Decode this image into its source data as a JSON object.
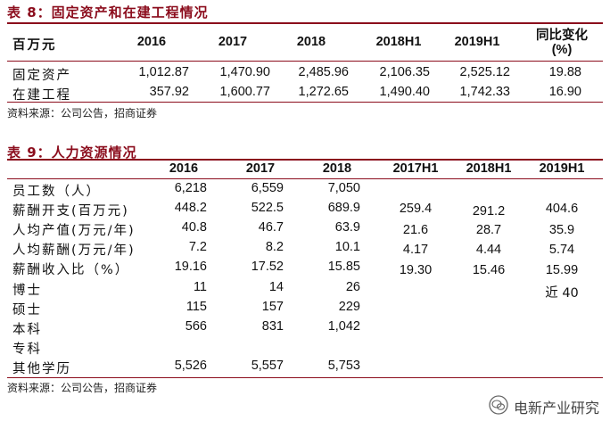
{
  "table8": {
    "title": "表 8：固定资产和在建工程情况",
    "headers": [
      "百万元",
      "2016",
      "2017",
      "2018",
      "2018H1",
      "2019H1",
      "同比变化",
      "(%)"
    ],
    "rows": [
      {
        "label": "固定资产",
        "values": [
          "1,012.87",
          "1,470.90",
          "2,485.96",
          "2,106.35",
          "2,525.12",
          "19.88"
        ]
      },
      {
        "label": "在建工程",
        "values": [
          "357.92",
          "1,600.77",
          "1,272.65",
          "1,490.40",
          "1,742.33",
          "16.90"
        ]
      }
    ],
    "source": "资料来源：公司公告，招商证券"
  },
  "table9": {
    "title": "表 9：人力资源情况",
    "headers": [
      "2016",
      "2017",
      "2018",
      "2017H1",
      "2018H1",
      "2019H1"
    ],
    "rows": [
      {
        "label": "员工数（人）",
        "values": [
          "6,218",
          "6,559",
          "7,050",
          "",
          "",
          ""
        ]
      },
      {
        "label": "薪酬开支(百万元)",
        "values": [
          "448.2",
          "522.5",
          "689.9",
          "",
          "",
          ""
        ]
      },
      {
        "label": "人均产值(万元/年)",
        "values": [
          "40.8",
          "46.7",
          "63.9",
          "",
          "",
          ""
        ]
      },
      {
        "label": "人均薪酬(万元/年)",
        "values": [
          "7.2",
          "8.2",
          "10.1",
          "",
          "",
          ""
        ]
      },
      {
        "label": "薪酬收入比（%）",
        "values": [
          "19.16",
          "17.52",
          "15.85",
          "",
          "",
          ""
        ]
      },
      {
        "label": "博士",
        "values": [
          "11",
          "14",
          "26",
          "",
          "",
          ""
        ]
      },
      {
        "label": "硕士",
        "values": [
          "115",
          "157",
          "229",
          "",
          "",
          ""
        ]
      },
      {
        "label": "本科",
        "values": [
          "566",
          "831",
          "1,042",
          "",
          "",
          ""
        ]
      },
      {
        "label": "专科",
        "values": [
          "",
          "",
          "",
          "",
          "",
          ""
        ]
      },
      {
        "label": "其他学历",
        "values": [
          "5,526",
          "5,557",
          "5,753",
          "",
          "",
          ""
        ]
      }
    ],
    "half_year": [
      [
        "259.4",
        "291.2",
        "404.6"
      ],
      [
        "21.6",
        "28.7",
        "35.9"
      ],
      [
        "4.17",
        "4.44",
        "5.74"
      ],
      [
        "19.30",
        "15.46",
        "15.99"
      ],
      [
        "",
        "",
        "近 40"
      ]
    ],
    "source": "资料来源：公司公告，招商证券"
  },
  "watermark": {
    "icon": "wechat-icon",
    "text": "电新产业研究"
  }
}
